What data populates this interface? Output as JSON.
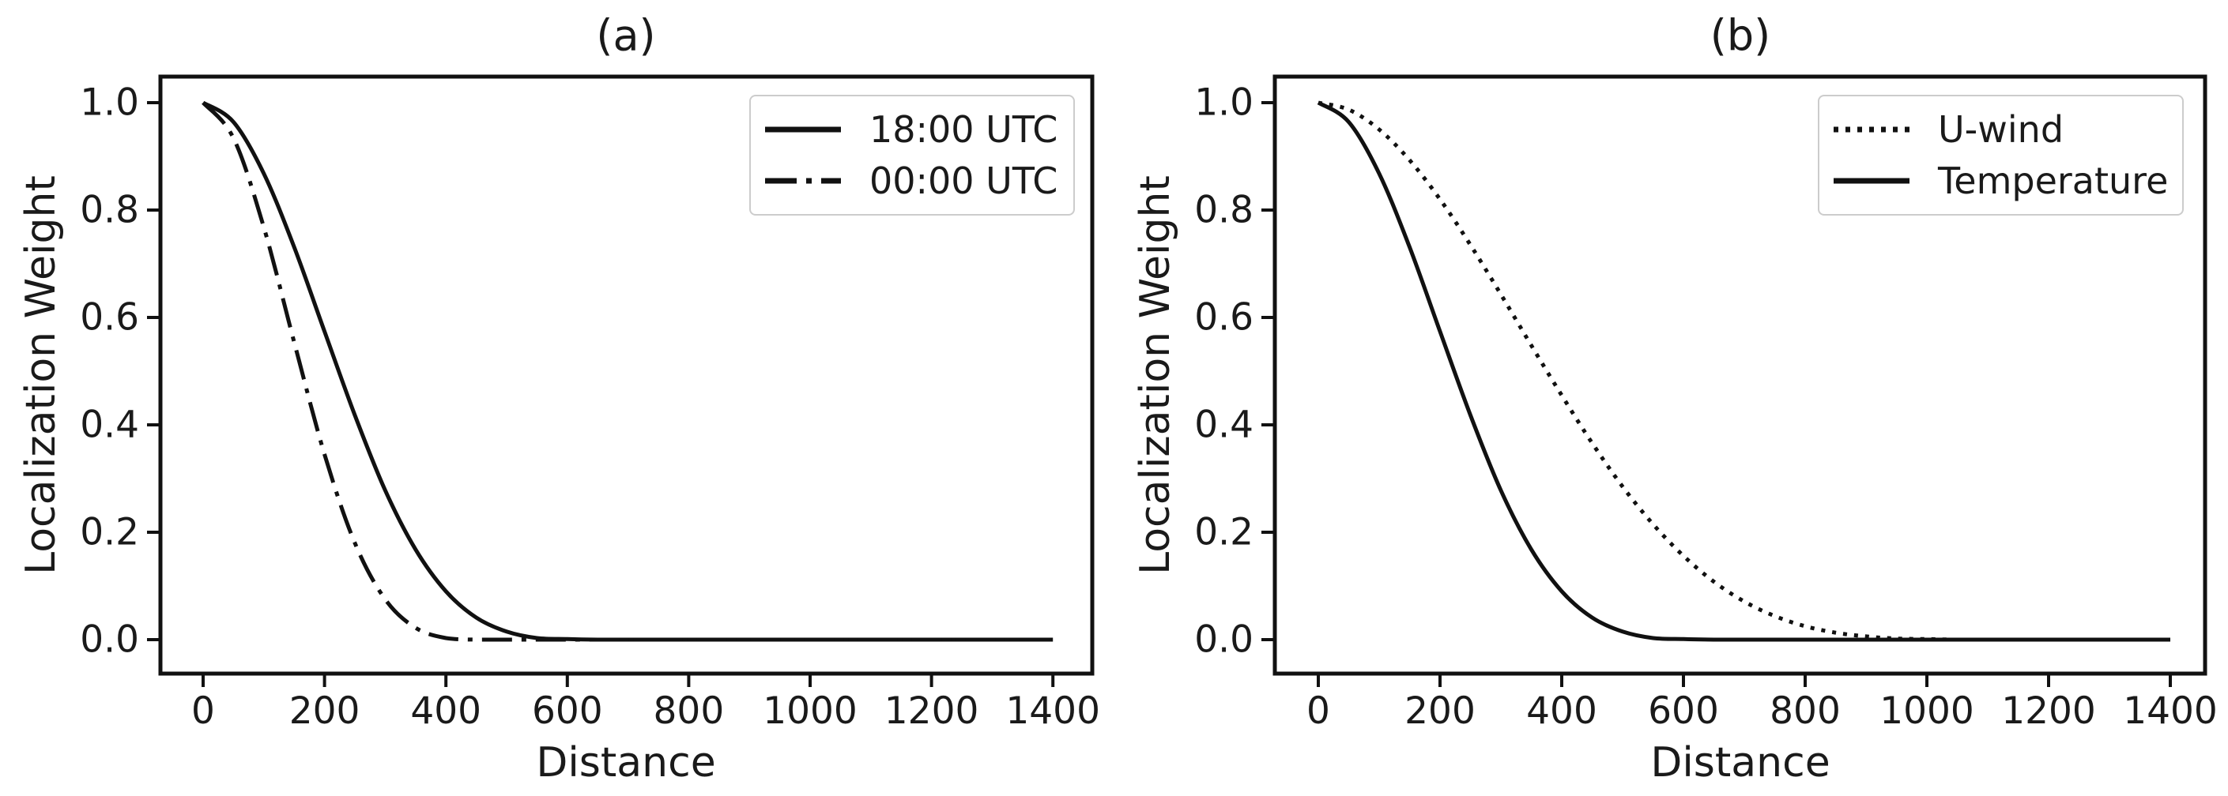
{
  "figure": {
    "background": "#ffffff",
    "ink_color": "#111111",
    "text_color": "#1a1a1a",
    "legend_border_color": "#cccccc"
  },
  "chart_data": [
    {
      "id": "a",
      "type": "line",
      "title": "(a)",
      "xlabel": "Distance",
      "ylabel": "Localization Weight",
      "xlim": [
        -70,
        1465
      ],
      "ylim": [
        -0.05,
        1.05
      ],
      "grid": false,
      "legend_position": "upper right",
      "xticks": [
        0,
        200,
        400,
        600,
        800,
        1000,
        1200,
        1400
      ],
      "xticklabels": [
        "0",
        "200",
        "400",
        "600",
        "800",
        "1000",
        "1200",
        "1400"
      ],
      "yticks": [
        0.0,
        0.2,
        0.4,
        0.6,
        0.8,
        1.0
      ],
      "yticklabels": [
        "0.0",
        "0.2",
        "0.4",
        "0.6",
        "0.8",
        "1.0"
      ],
      "x": [
        0,
        50,
        100,
        150,
        200,
        250,
        300,
        350,
        400,
        450,
        500,
        550,
        600,
        650,
        700,
        750,
        800,
        850,
        900,
        950,
        1000,
        1050,
        1100,
        1150,
        1200,
        1250,
        1300,
        1350,
        1400
      ],
      "series": [
        {
          "name": "18:00 UTC",
          "linestyle": "solid",
          "color": "#111111",
          "values": [
            1.0,
            0.964,
            0.868,
            0.731,
            0.574,
            0.418,
            0.278,
            0.168,
            0.09,
            0.041,
            0.015,
            0.003,
            0.001,
            0,
            0,
            0,
            0,
            0,
            0,
            0,
            0,
            0,
            0,
            0,
            0,
            0,
            0,
            0,
            0
          ]
        },
        {
          "name": "00:00 UTC",
          "linestyle": "dashdot",
          "color": "#111111",
          "values": [
            1.0,
            0.934,
            0.768,
            0.554,
            0.345,
            0.18,
            0.075,
            0.022,
            0.003,
            0,
            0,
            0,
            0,
            0,
            0,
            0,
            0,
            0,
            0,
            0,
            0,
            0,
            0,
            0,
            0,
            0,
            0,
            0,
            0
          ]
        }
      ]
    },
    {
      "id": "b",
      "type": "line",
      "title": "(b)",
      "xlabel": "Distance",
      "ylabel": "Localization Weight",
      "xlim": [
        -70,
        1465
      ],
      "ylim": [
        -0.05,
        1.05
      ],
      "grid": false,
      "legend_position": "upper right",
      "xticks": [
        0,
        200,
        400,
        600,
        800,
        1000,
        1200,
        1400
      ],
      "xticklabels": [
        "0",
        "200",
        "400",
        "600",
        "800",
        "1000",
        "1200",
        "1400"
      ],
      "yticks": [
        0.0,
        0.2,
        0.4,
        0.6,
        0.8,
        1.0
      ],
      "yticklabels": [
        "0.0",
        "0.2",
        "0.4",
        "0.6",
        "0.8",
        "1.0"
      ],
      "x": [
        0,
        50,
        100,
        150,
        200,
        250,
        300,
        350,
        400,
        450,
        500,
        550,
        600,
        650,
        700,
        750,
        800,
        850,
        900,
        950,
        1000,
        1050,
        1100,
        1150,
        1200,
        1250,
        1300,
        1350,
        1400
      ],
      "series": [
        {
          "name": "U-wind",
          "linestyle": "dotted",
          "color": "#111111",
          "values": [
            1.0,
            0.987,
            0.95,
            0.893,
            0.82,
            0.735,
            0.643,
            0.548,
            0.455,
            0.366,
            0.285,
            0.215,
            0.156,
            0.108,
            0.071,
            0.044,
            0.025,
            0.013,
            0.006,
            0.002,
            0.001,
            0,
            0,
            0,
            0,
            0,
            0,
            0,
            0
          ]
        },
        {
          "name": "Temperature",
          "linestyle": "solid",
          "color": "#111111",
          "values": [
            1.0,
            0.964,
            0.868,
            0.731,
            0.574,
            0.418,
            0.278,
            0.168,
            0.09,
            0.041,
            0.015,
            0.003,
            0.001,
            0,
            0,
            0,
            0,
            0,
            0,
            0,
            0,
            0,
            0,
            0,
            0,
            0,
            0,
            0,
            0
          ]
        }
      ]
    }
  ]
}
